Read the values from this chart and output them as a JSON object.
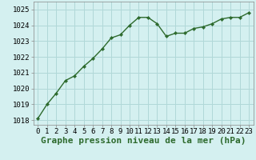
{
  "x": [
    0,
    1,
    2,
    3,
    4,
    5,
    6,
    7,
    8,
    9,
    10,
    11,
    12,
    13,
    14,
    15,
    16,
    17,
    18,
    19,
    20,
    21,
    22,
    23
  ],
  "y": [
    1018.1,
    1019.0,
    1019.7,
    1020.5,
    1020.8,
    1021.4,
    1021.9,
    1022.5,
    1023.2,
    1023.4,
    1024.0,
    1024.5,
    1024.5,
    1024.1,
    1023.3,
    1023.5,
    1023.5,
    1023.8,
    1023.9,
    1024.1,
    1024.4,
    1024.5,
    1024.5,
    1024.8
  ],
  "ylim": [
    1017.7,
    1025.5
  ],
  "yticks": [
    1018,
    1019,
    1020,
    1021,
    1022,
    1023,
    1024,
    1025
  ],
  "xticks": [
    0,
    1,
    2,
    3,
    4,
    5,
    6,
    7,
    8,
    9,
    10,
    11,
    12,
    13,
    14,
    15,
    16,
    17,
    18,
    19,
    20,
    21,
    22,
    23
  ],
  "xlabel": "Graphe pression niveau de la mer (hPa)",
  "line_color": "#2d6a2d",
  "marker": "D",
  "marker_size": 2.2,
  "bg_color": "#d4f0f0",
  "grid_color": "#b0d8d8",
  "line_width": 1.0,
  "xlabel_fontsize": 8,
  "tick_fontsize": 6.5
}
